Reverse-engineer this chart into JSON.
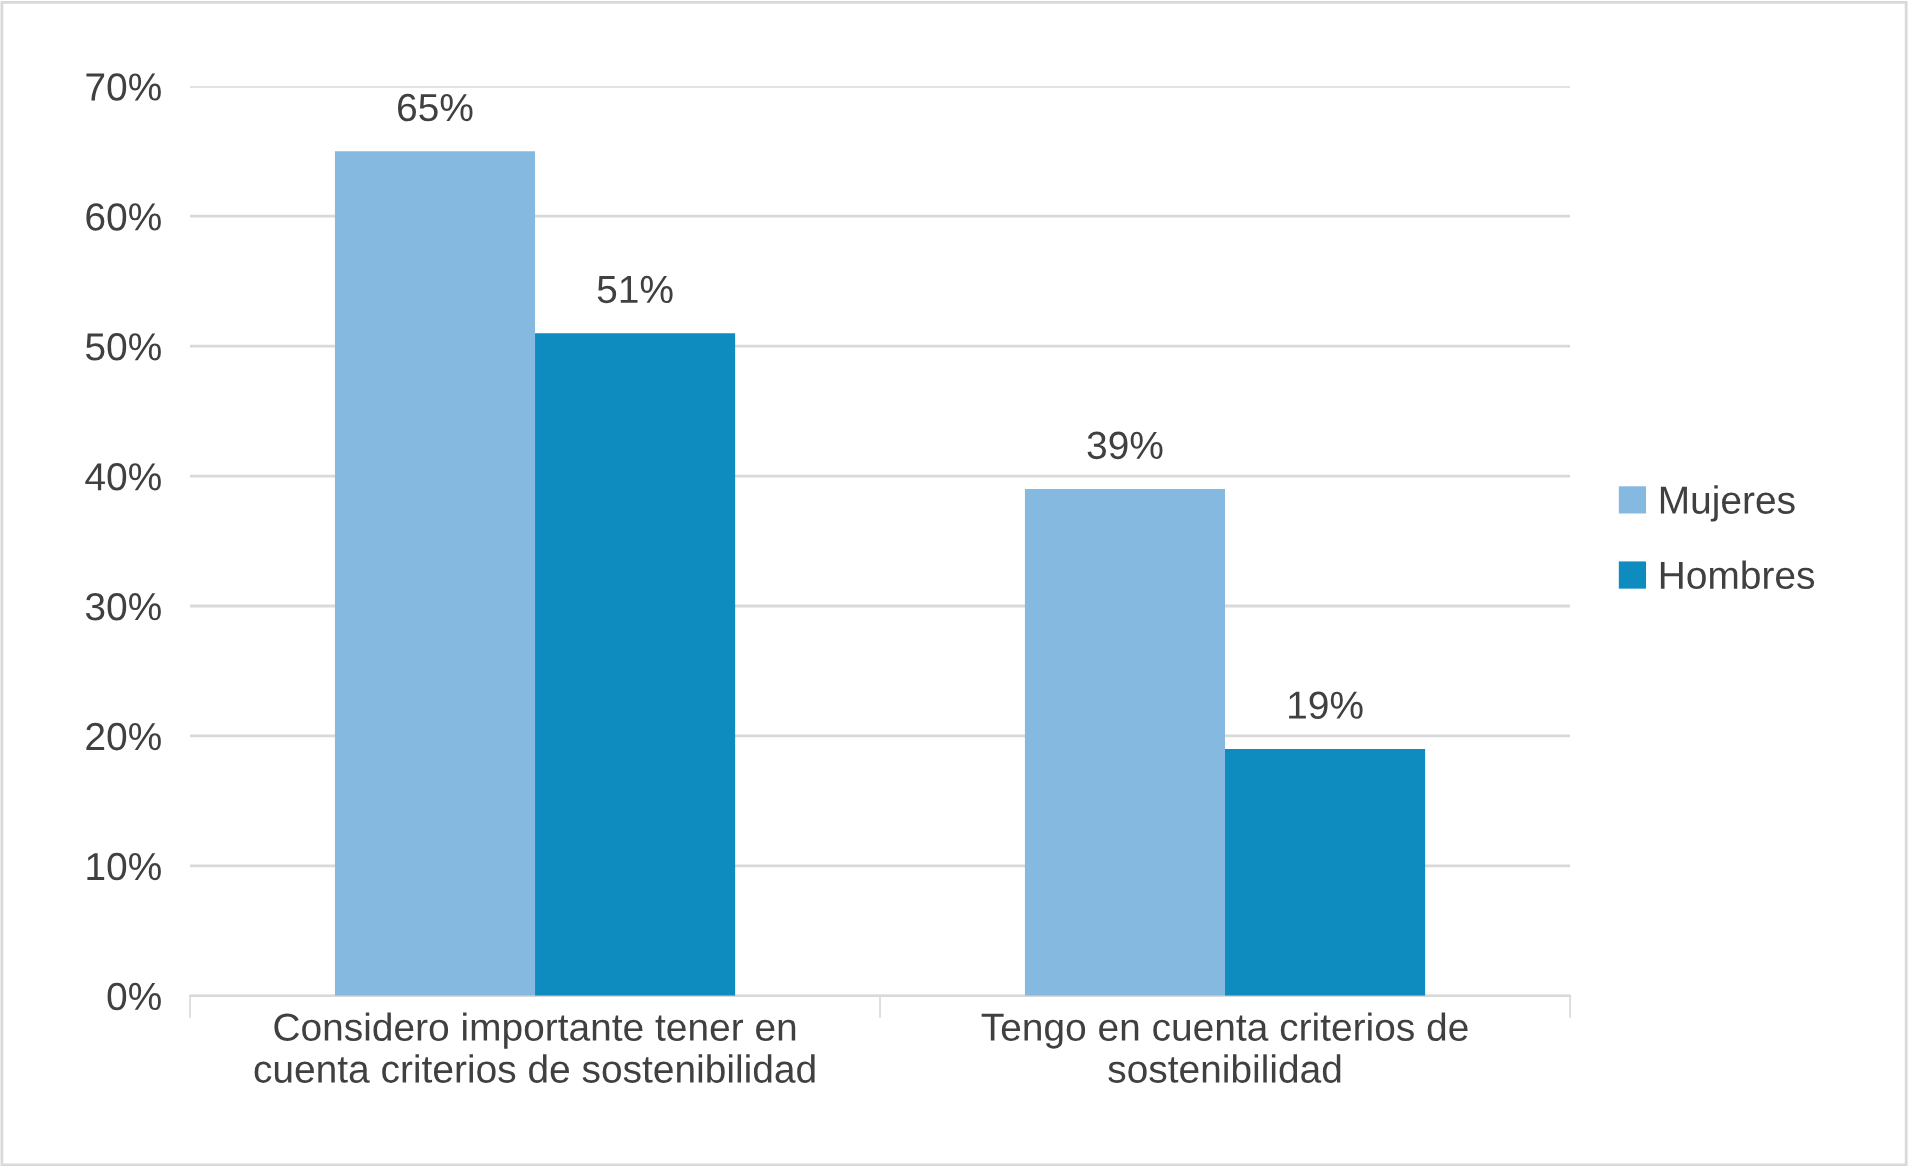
{
  "chart_data": {
    "type": "bar",
    "categories": [
      "Considero importante tener en\ncuenta criterios de sostenibilidad",
      "Tengo en cuenta criterios de\nsostenibilidad"
    ],
    "series": [
      {
        "name": "Mujeres",
        "color": "#85b9e0",
        "values": [
          65,
          39
        ],
        "value_labels": [
          "65%",
          "39%"
        ]
      },
      {
        "name": "Hombres",
        "color": "#0e8bbf",
        "values": [
          51,
          19
        ],
        "value_labels": [
          "51%",
          "19%"
        ]
      }
    ],
    "ylim": [
      0,
      70
    ],
    "yticks": [
      {
        "value": 0,
        "label": "0%"
      },
      {
        "value": 10,
        "label": "10%"
      },
      {
        "value": 20,
        "label": "20%"
      },
      {
        "value": 30,
        "label": "30%"
      },
      {
        "value": 40,
        "label": "40%"
      },
      {
        "value": 50,
        "label": "50%"
      },
      {
        "value": 60,
        "label": "60%"
      },
      {
        "value": 70,
        "label": "70%"
      }
    ],
    "grid": "y",
    "legend": "right"
  }
}
